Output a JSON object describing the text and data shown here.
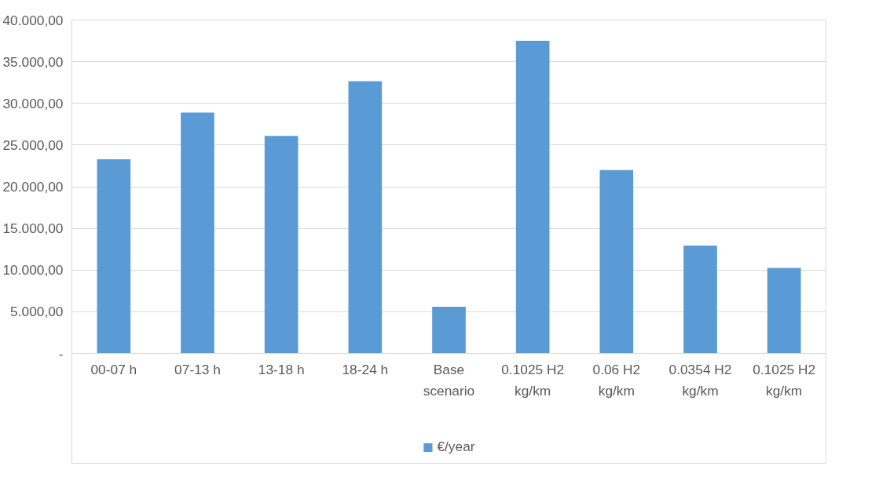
{
  "chart_data": {
    "type": "bar",
    "categories": [
      "00-07 h",
      "07-13 h",
      "13-18 h",
      "18-24 h",
      "Base\nscenario",
      "0.1025 H2\nkg/km",
      "0.06 H2\nkg/km",
      "0.0354 H2\nkg/km",
      "0.1025 H2\nkg/km"
    ],
    "series": [
      {
        "name": "€/year",
        "color": "#5b9bd5",
        "values": [
          23300,
          28900,
          26100,
          32650,
          5600,
          37500,
          22000,
          12950,
          10250
        ]
      }
    ],
    "ylim": [
      0,
      40000
    ],
    "yticks": [
      {
        "value": 0,
        "label": "-"
      },
      {
        "value": 5000,
        "label": "5.000,00"
      },
      {
        "value": 10000,
        "label": "10.000,00"
      },
      {
        "value": 15000,
        "label": "15.000,00"
      },
      {
        "value": 20000,
        "label": "20.000,00"
      },
      {
        "value": 25000,
        "label": "25.000,00"
      },
      {
        "value": 30000,
        "label": "30.000,00"
      },
      {
        "value": 35000,
        "label": "35.000,00"
      },
      {
        "value": 40000,
        "label": "40.000,00"
      }
    ],
    "grid": "y",
    "legend": "bottom"
  }
}
